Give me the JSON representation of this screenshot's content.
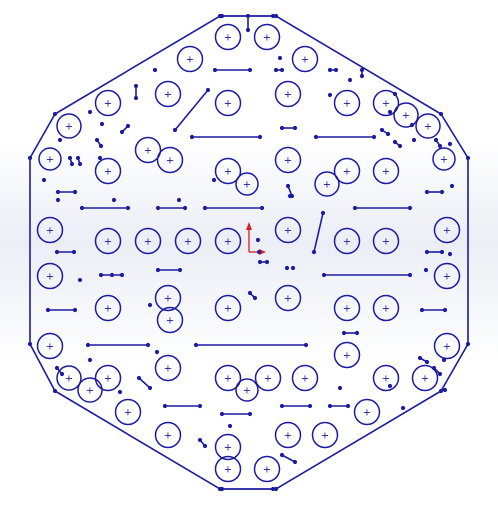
{
  "sketch": {
    "line_color": "#1c1ca0",
    "center_mark_color": "#1c1ca0",
    "origin_marker": {
      "x_axis_color": "#d22020",
      "y_axis_color": "#d22020",
      "origin_color": "#d22020"
    },
    "hole_center_glyph": "+"
  }
}
